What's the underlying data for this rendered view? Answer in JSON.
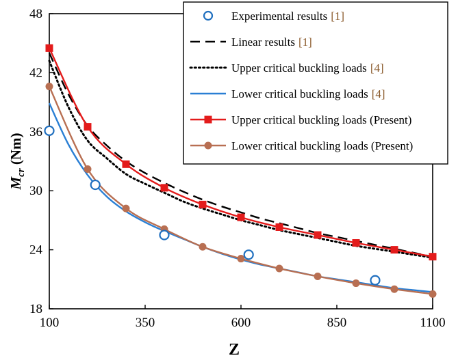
{
  "chart_data": {
    "type": "line",
    "xlabel": "Z",
    "ylabel_main": "M",
    "ylabel_sub": "cr",
    "ylabel_unit": "(Nm)",
    "xlim": [
      100,
      1100
    ],
    "ylim": [
      18,
      48
    ],
    "xticks": [
      100,
      350,
      600,
      850,
      1100
    ],
    "yticks": [
      18,
      24,
      30,
      36,
      42,
      48
    ],
    "grid": false,
    "legend_position": "top-right",
    "series": [
      {
        "name": "Experimental results",
        "ref": "[1]",
        "style": "circles",
        "color": "#1f6fbf",
        "x": [
          100,
          220,
          400,
          620,
          950
        ],
        "y": [
          36.1,
          30.6,
          25.5,
          23.5,
          20.9
        ]
      },
      {
        "name": "Linear results",
        "ref": "[1]",
        "style": "dashed",
        "color": "#000000",
        "x": [
          100,
          150,
          200,
          250,
          300,
          350,
          400,
          450,
          500,
          550,
          600,
          650,
          700,
          750,
          800,
          850,
          900,
          950,
          1000,
          1050,
          1100
        ],
        "y": [
          44.0,
          39.8,
          36.6,
          34.6,
          33.0,
          31.8,
          30.8,
          29.9,
          29.1,
          28.4,
          27.8,
          27.2,
          26.7,
          26.2,
          25.7,
          25.3,
          24.9,
          24.5,
          24.1,
          23.7,
          23.3
        ]
      },
      {
        "name": "Upper critical buckling loads",
        "ref": "[4]",
        "style": "dotted",
        "color": "#000000",
        "x": [
          100,
          150,
          200,
          250,
          300,
          350,
          400,
          450,
          500,
          550,
          600,
          650,
          700,
          750,
          800,
          850,
          900,
          950,
          1000,
          1050,
          1100
        ],
        "y": [
          43.2,
          38.5,
          35.1,
          33.3,
          31.7,
          30.7,
          29.8,
          28.9,
          28.2,
          27.6,
          27.0,
          26.5,
          26.0,
          25.6,
          25.2,
          24.8,
          24.4,
          24.1,
          23.8,
          23.5,
          23.2
        ]
      },
      {
        "name": "Lower critical buckling loads",
        "ref": "[4]",
        "style": "solid",
        "color": "#2a7fd4",
        "x": [
          100,
          150,
          200,
          250,
          300,
          350,
          400,
          450,
          500,
          550,
          600,
          650,
          700,
          750,
          800,
          850,
          900,
          950,
          1000,
          1050,
          1100
        ],
        "y": [
          38.9,
          34.7,
          31.6,
          29.4,
          27.9,
          26.8,
          25.9,
          25.1,
          24.3,
          23.6,
          23.0,
          22.5,
          22.1,
          21.7,
          21.3,
          21.0,
          20.7,
          20.4,
          20.1,
          19.9,
          19.7
        ]
      },
      {
        "name": "Upper critical buckling loads (Present)",
        "ref": "",
        "style": "line-squares",
        "color": "#e31b1b",
        "x": [
          100,
          200,
          300,
          400,
          500,
          600,
          700,
          800,
          900,
          1000,
          1100
        ],
        "y": [
          44.5,
          36.5,
          32.7,
          30.3,
          28.6,
          27.3,
          26.3,
          25.5,
          24.7,
          24.0,
          23.3
        ]
      },
      {
        "name": "Lower critical buckling loads (Present)",
        "ref": "",
        "style": "line-circles",
        "color": "#b86f52",
        "x": [
          100,
          200,
          300,
          400,
          500,
          600,
          700,
          800,
          900,
          1000,
          1100
        ],
        "y": [
          40.6,
          32.2,
          28.2,
          26.1,
          24.3,
          23.1,
          22.1,
          21.3,
          20.6,
          20.0,
          19.5
        ]
      }
    ]
  }
}
